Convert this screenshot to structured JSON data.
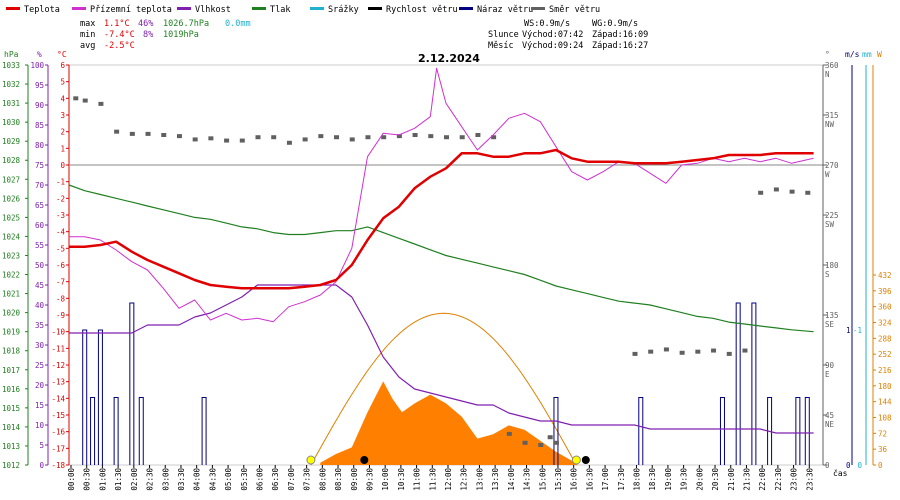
{
  "chart_data": {
    "type": "line",
    "title": "2.12.2024",
    "legend": [
      {
        "name": "Teplota",
        "color": "#e00000"
      },
      {
        "name": "Přízemní teplota",
        "color": "#d030d0"
      },
      {
        "name": "Vlhkost",
        "color": "#8020b0"
      },
      {
        "name": "Tlak",
        "color": "#208020"
      },
      {
        "name": "Srážky",
        "color": "#20b0d0"
      },
      {
        "name": "Rychlost větru",
        "color": "#000000"
      },
      {
        "name": "Náraz větru",
        "color": "#000080"
      },
      {
        "name": "Směr větru",
        "color": "#606060"
      }
    ],
    "stats": {
      "max_label": "max",
      "max_temp": "1.1°C",
      "max_hum": "46%",
      "max_press": "1026.7hPa",
      "max_rain": "0.0mm",
      "min_label": "min",
      "min_temp": "-7.4°C",
      "min_hum": "8%",
      "min_press": "1019hPa",
      "avg_label": "avg",
      "avg_temp": "-2.5°C"
    },
    "wind_info": {
      "ws": "WS:0.9m/s",
      "wg": "WG:0.9m/s"
    },
    "sun": {
      "label": "Slunce",
      "rise": "Východ:07:42",
      "set": "Západ:16:09"
    },
    "moon": {
      "label": "Měsíc",
      "rise": "Východ:09:24",
      "set": "Západ:16:27"
    },
    "axis_headers": {
      "pressure": "hPa",
      "humidity": "%",
      "temperature": "°C",
      "direction": "°",
      "speed": "m/s",
      "rain": "mm",
      "solar": "W"
    },
    "xlabel": "čas",
    "xticks": [
      "00:00",
      "00:30",
      "01:00",
      "01:30",
      "02:00",
      "02:30",
      "03:00",
      "03:30",
      "04:00",
      "04:30",
      "05:00",
      "05:30",
      "06:00",
      "06:30",
      "07:00",
      "07:30",
      "08:00",
      "08:30",
      "09:00",
      "09:30",
      "10:00",
      "10:30",
      "11:00",
      "11:30",
      "12:00",
      "12:30",
      "13:00",
      "13:30",
      "14:00",
      "14:30",
      "15:00",
      "15:30",
      "16:00",
      "16:30",
      "17:00",
      "17:30",
      "18:00",
      "18:30",
      "19:00",
      "19:30",
      "20:00",
      "20:30",
      "21:00",
      "21:30",
      "22:00",
      "22:30",
      "23:00",
      "23:30"
    ],
    "yaxes": {
      "pressure": {
        "min": 1012,
        "max": 1033,
        "step": 1
      },
      "humidity": {
        "min": 0,
        "max": 100,
        "step": 5,
        "ticks": [
          0,
          5,
          10,
          15,
          20,
          25,
          30,
          35,
          40,
          45,
          50,
          55,
          60,
          65,
          70,
          75,
          80,
          85,
          90,
          95,
          100
        ]
      },
      "temperature": {
        "min": -18,
        "max": 6,
        "step": 1
      },
      "direction": {
        "ticks": [
          {
            "v": 360,
            "l": "N"
          },
          {
            "v": 315,
            "l": "NW"
          },
          {
            "v": 270,
            "l": "W"
          },
          {
            "v": 225,
            "l": "SW"
          },
          {
            "v": 180,
            "l": "S"
          },
          {
            "v": 135,
            "l": "SE"
          },
          {
            "v": 90,
            "l": "E"
          },
          {
            "v": 45,
            "l": "NE"
          },
          {
            "v": 0,
            "l": ""
          }
        ]
      },
      "speed_ticks": [
        "1",
        "0"
      ],
      "rain_ticks": [
        "-1",
        "0"
      ],
      "solar_ticks": [
        "432",
        "396",
        "360",
        "324",
        "288",
        "252",
        "216",
        "180",
        "144",
        "108",
        "72",
        "36",
        "0"
      ]
    },
    "series": [
      {
        "name": "Teplota",
        "x": [
          0,
          0.5,
          1,
          1.5,
          2,
          2.5,
          3,
          3.5,
          4,
          4.5,
          5,
          5.5,
          6,
          6.5,
          7,
          7.5,
          8,
          8.5,
          9,
          9.5,
          10,
          10.5,
          11,
          11.5,
          12,
          12.5,
          13,
          13.5,
          14,
          14.5,
          15,
          15.5,
          16,
          16.5,
          17,
          17.5,
          18,
          18.5,
          19,
          19.5,
          20,
          20.5,
          21,
          21.5,
          22,
          22.5,
          23,
          23.7
        ],
        "values": [
          -4.9,
          -4.9,
          -4.8,
          -4.6,
          -5.2,
          -5.7,
          -6.1,
          -6.5,
          -6.9,
          -7.2,
          -7.3,
          -7.4,
          -7.4,
          -7.4,
          -7.4,
          -7.3,
          -7.2,
          -6.9,
          -6.0,
          -4.5,
          -3.2,
          -2.5,
          -1.4,
          -0.7,
          -0.2,
          0.7,
          0.7,
          0.5,
          0.5,
          0.7,
          0.7,
          0.9,
          0.4,
          0.2,
          0.2,
          0.2,
          0.1,
          0.1,
          0.1,
          0.2,
          0.3,
          0.4,
          0.6,
          0.6,
          0.6,
          0.7,
          0.7,
          0.7
        ]
      },
      {
        "name": "Přízemní teplota",
        "x": [
          0,
          0.5,
          1,
          1.5,
          2,
          2.5,
          3,
          3.5,
          4,
          4.5,
          5,
          5.5,
          6,
          6.5,
          7,
          7.5,
          8,
          8.5,
          9,
          9.5,
          10,
          10.5,
          11,
          11.5,
          11.7,
          12,
          12.5,
          13,
          13.5,
          14,
          14.5,
          15,
          15.5,
          16,
          16.5,
          17,
          17.5,
          18,
          18.5,
          19,
          19.5,
          20,
          20.5,
          21,
          21.5,
          22,
          22.5,
          23,
          23.7
        ],
        "values": [
          -4.3,
          -4.3,
          -4.5,
          -5.1,
          -5.8,
          -6.3,
          -7.4,
          -8.6,
          -8.1,
          -9.3,
          -8.9,
          -9.3,
          -9.2,
          -9.4,
          -8.5,
          -8.2,
          -7.8,
          -7.0,
          -5.0,
          0.5,
          1.9,
          1.8,
          2.2,
          2.9,
          5.8,
          3.7,
          2.3,
          0.9,
          1.8,
          2.8,
          3.1,
          2.6,
          1.1,
          -0.4,
          -0.9,
          -0.4,
          0.2,
          0.1,
          -0.5,
          -1.1,
          0.0,
          0.1,
          0.4,
          0.2,
          0.4,
          0.2,
          0.4,
          0.1,
          0.4
        ]
      },
      {
        "name": "Vlhkost",
        "x": [
          0,
          0.5,
          1,
          1.5,
          2,
          2.5,
          3,
          3.5,
          4,
          4.5,
          5,
          5.5,
          6,
          6.5,
          7,
          7.5,
          8,
          8.5,
          9,
          9.5,
          10,
          10.5,
          11,
          11.5,
          12,
          12.5,
          13,
          13.5,
          14,
          14.5,
          15,
          15.5,
          16,
          16.5,
          17,
          17.5,
          18,
          18.5,
          19,
          19.5,
          20,
          20.5,
          21,
          21.5,
          22,
          22.5,
          23,
          23.7
        ],
        "values": [
          33,
          33,
          33,
          33,
          33,
          35,
          35,
          35,
          37,
          38,
          40,
          42,
          45,
          45,
          45,
          45,
          45,
          45,
          42,
          35,
          27,
          22,
          19,
          18,
          17,
          16,
          15,
          15,
          13,
          12,
          11,
          11,
          10,
          10,
          10,
          10,
          10,
          9,
          9,
          9,
          9,
          9,
          9,
          9,
          9,
          8,
          8,
          8
        ]
      },
      {
        "name": "Tlak",
        "x": [
          0,
          0.5,
          1,
          1.5,
          2,
          2.5,
          3,
          3.5,
          4,
          4.5,
          5,
          5.5,
          6,
          6.5,
          7,
          7.5,
          8,
          8.5,
          9,
          9.5,
          10,
          10.5,
          11,
          11.5,
          12,
          12.5,
          13,
          13.5,
          14,
          14.5,
          15,
          15.5,
          16,
          16.5,
          17,
          17.5,
          18,
          18.5,
          19,
          19.5,
          20,
          20.5,
          21,
          21.5,
          22,
          22.5,
          23,
          23.7
        ],
        "values": [
          1026.7,
          1026.4,
          1026.2,
          1026.0,
          1025.8,
          1025.6,
          1025.4,
          1025.2,
          1025.0,
          1024.9,
          1024.7,
          1024.5,
          1024.4,
          1024.2,
          1024.1,
          1024.1,
          1024.2,
          1024.3,
          1024.3,
          1024.5,
          1024.2,
          1023.9,
          1023.6,
          1023.3,
          1023.0,
          1022.8,
          1022.6,
          1022.4,
          1022.2,
          1022.0,
          1021.7,
          1021.4,
          1021.2,
          1021.0,
          1020.8,
          1020.6,
          1020.5,
          1020.4,
          1020.2,
          1020.0,
          1019.8,
          1019.7,
          1019.5,
          1019.4,
          1019.3,
          1019.2,
          1019.1,
          1019.0
        ]
      }
    ],
    "sun_curve": {
      "rise": 7.7,
      "set": 16.15,
      "peak": 345
    },
    "solar_radiation": {
      "x": [
        8.0,
        8.5,
        9.0,
        9.5,
        10.0,
        10.3,
        10.6,
        11.0,
        11.5,
        12.0,
        12.5,
        13.0,
        13.5,
        14.0,
        14.5,
        15.0,
        15.5,
        16.0,
        16.2
      ],
      "values": [
        5,
        25,
        40,
        120,
        190,
        150,
        120,
        140,
        160,
        140,
        110,
        60,
        70,
        90,
        80,
        55,
        30,
        10,
        0
      ]
    },
    "wind_gust": {
      "x": [
        0.5,
        0.75,
        1.0,
        1.5,
        2.0,
        2.3,
        4.3,
        15.5,
        18.2,
        20.8,
        21.3,
        21.8,
        22.3,
        23.2,
        23.5
      ],
      "values": [
        1.0,
        0.5,
        1.0,
        0.5,
        1.2,
        0.5,
        0.5,
        0.5,
        0.5,
        0.5,
        1.2,
        1.2,
        0.5,
        0.5,
        0.5
      ]
    },
    "wind_direction": {
      "x": [
        0.2,
        0.5,
        1.0,
        1.5,
        2.0,
        2.5,
        3.0,
        3.5,
        4.0,
        4.5,
        5.0,
        5.5,
        6.0,
        6.5,
        7.0,
        7.5,
        8.0,
        8.5,
        9.0,
        9.5,
        10.0,
        10.5,
        11.0,
        11.5,
        12.0,
        12.5,
        13.0,
        13.5,
        14.0,
        14.5,
        15.0,
        15.3,
        15.5,
        18.0,
        18.5,
        19.0,
        19.5,
        20.0,
        20.5,
        21.0,
        21.5,
        22.0,
        22.5,
        23.0,
        23.5
      ],
      "values": [
        330,
        328,
        325,
        300,
        298,
        298,
        297,
        296,
        293,
        294,
        292,
        292,
        295,
        295,
        290,
        293,
        296,
        295,
        293,
        295,
        295,
        296,
        297,
        296,
        295,
        295,
        297,
        295,
        28,
        20,
        18,
        25,
        20,
        100,
        102,
        104,
        101,
        102,
        103,
        100,
        103,
        245,
        248,
        246,
        245
      ]
    },
    "markers": {
      "sunrise_x": 7.7,
      "sunset_x": 16.15,
      "moonrise_x": 9.4,
      "moonset_x": 16.45
    }
  }
}
